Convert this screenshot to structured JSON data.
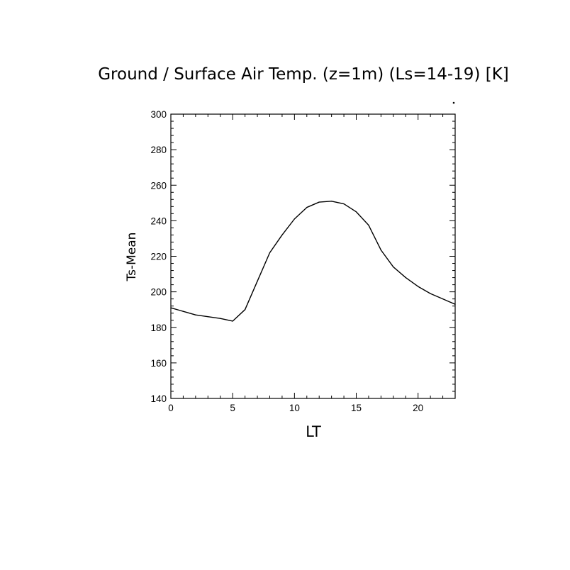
{
  "chart_data": {
    "type": "line",
    "title": "Ground / Surface Air Temp. (z=1m) (Ls=14-19) [K]",
    "xlabel": "LT",
    "ylabel": "Ts-Mean",
    "xlim": [
      0,
      23
    ],
    "ylim": [
      140,
      300
    ],
    "xticks": [
      0,
      5,
      10,
      15,
      20
    ],
    "yticks": [
      140,
      160,
      180,
      200,
      220,
      240,
      260,
      280,
      300
    ],
    "grid": false,
    "series": [
      {
        "x": [
          0,
          1,
          2,
          3,
          4,
          5,
          6,
          7,
          8,
          9,
          10,
          11,
          12,
          13,
          14,
          15,
          16,
          17,
          18,
          19,
          20,
          21,
          22,
          23
        ],
        "values": [
          191,
          189,
          187,
          186,
          185,
          183.5,
          190,
          206,
          222,
          232,
          241,
          247.5,
          250.5,
          251,
          249.5,
          245,
          237.5,
          223.5,
          214,
          208,
          203,
          199,
          196,
          193
        ]
      }
    ]
  }
}
